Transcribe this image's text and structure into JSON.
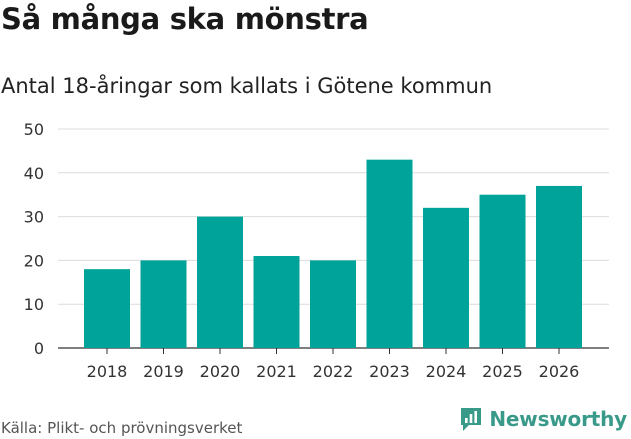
{
  "title": "Så många ska mönstra",
  "subtitle": "Antal 18-åringar som kallats i Götene kommun",
  "source": "Källa: Plikt- och prövningsverket",
  "brand": "Newsworthy",
  "chart_data": {
    "type": "bar",
    "categories": [
      "2018",
      "2019",
      "2020",
      "2021",
      "2022",
      "2023",
      "2024",
      "2025",
      "2026"
    ],
    "values": [
      18,
      20,
      30,
      21,
      20,
      43,
      32,
      35,
      37
    ],
    "yticks": [
      0,
      10,
      20,
      30,
      40,
      50
    ],
    "ylim": [
      0,
      50
    ],
    "xlabel": "",
    "ylabel": "",
    "grid": true,
    "bar_color": "#00a39a"
  }
}
